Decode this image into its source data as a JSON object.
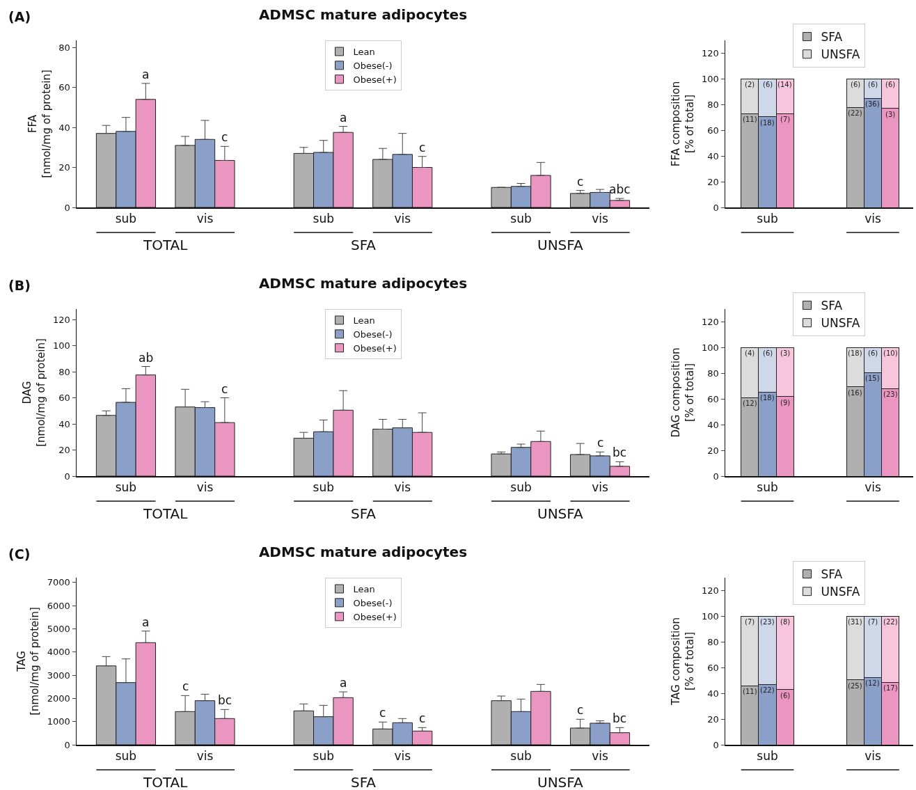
{
  "chart_data": [
    {
      "type": "bar",
      "title": "ADMSC mature adipocytes",
      "ylabel": "FFA\n[nmol/mg of protein]",
      "annotations": [
        "(A)",
        "TOTAL",
        "SFA",
        "UNSFA"
      ],
      "categories": [
        "sub",
        null,
        "vis",
        null,
        null,
        "sub",
        null,
        "vis",
        null,
        null,
        "sub",
        null,
        "vis"
      ],
      "ylim": [
        0,
        83.5
      ],
      "yticks": [
        0,
        20,
        40,
        60,
        80
      ],
      "legend": "top",
      "series": [
        {
          "name": "Lean",
          "color": "#b0b0b0",
          "values": [
            37,
            null,
            31,
            null,
            null,
            27,
            null,
            24,
            null,
            null,
            10,
            null,
            7
          ],
          "errors": [
            [
              37,
              41
            ],
            null,
            [
              31,
              35.5
            ],
            null,
            null,
            [
              27,
              30
            ],
            null,
            [
              24,
              29.5
            ],
            null,
            null,
            null,
            null,
            [
              7,
              8.5
            ]
          ],
          "value_labels": [
            null,
            null,
            null,
            null,
            null,
            null,
            null,
            null,
            null,
            null,
            null,
            null,
            "c"
          ]
        },
        {
          "name": "Obese(-)",
          "color": "#8aa0c8",
          "values": [
            38,
            null,
            34,
            null,
            null,
            27.5,
            null,
            26.5,
            null,
            null,
            10.5,
            null,
            7.5
          ],
          "errors": [
            [
              38,
              45
            ],
            null,
            [
              34,
              43.5
            ],
            null,
            null,
            [
              27.5,
              33.5
            ],
            null,
            [
              26.5,
              37
            ],
            null,
            null,
            [
              10.5,
              12
            ],
            null,
            [
              7.5,
              9
            ]
          ]
        },
        {
          "name": "Obese(+)",
          "color": "#eb96c0",
          "values": [
            54,
            null,
            23.5,
            null,
            null,
            37.5,
            null,
            20,
            null,
            null,
            16,
            null,
            3.5
          ],
          "errors": [
            [
              54,
              62
            ],
            null,
            [
              23.5,
              30.5
            ],
            null,
            null,
            [
              37.5,
              40.5
            ],
            null,
            [
              20,
              25.5
            ],
            null,
            null,
            [
              16,
              22.5
            ],
            null,
            [
              3.5,
              4.5
            ]
          ],
          "value_labels": [
            "a",
            null,
            "c",
            null,
            null,
            "a",
            null,
            "c",
            null,
            null,
            null,
            null,
            "abc"
          ]
        }
      ]
    },
    {
      "type": "bar",
      "stacked": true,
      "ylabel": "FFA composition\n[% of total]",
      "categories": [
        null,
        "sub",
        null,
        null,
        null,
        null,
        null,
        "vis",
        null
      ],
      "ylim": [
        0,
        130
      ],
      "yticks": [
        0,
        20,
        40,
        60,
        80,
        100,
        120
      ],
      "legend": "top",
      "series": [
        {
          "name": "SFA",
          "colors": [
            "#b0b0b0",
            "#8aa0c8",
            "#eb96c0",
            null,
            null,
            null,
            "#b0b0b0",
            "#8aa0c8",
            "#eb96c0"
          ],
          "values": [
            73,
            70.5,
            73,
            null,
            null,
            null,
            78,
            85,
            77
          ]
        },
        {
          "name": "UNSFA",
          "colors": [
            "#dcdcdc",
            "#cfd8e8",
            "#f7c6dc",
            null,
            null,
            null,
            "#dcdcdc",
            "#cfd8e8",
            "#f7c6dc"
          ],
          "values": [
            27,
            29.5,
            27,
            null,
            null,
            null,
            22,
            15,
            23
          ]
        }
      ],
      "annotations": [
        {
          "text": "(11)",
          "y": 73
        },
        {
          "text": "(18)",
          "y": 70.5
        },
        {
          "text": "(7)",
          "y": 73
        },
        {
          "text": "(22)",
          "y": 78
        },
        {
          "text": "(36)",
          "y": 85
        },
        {
          "text": "(3)",
          "y": 77
        },
        {
          "text": "(2)",
          "y": 100
        },
        {
          "text": "(6)",
          "y": 100
        },
        {
          "text": "(14)",
          "y": 100
        },
        {
          "text": "(6)",
          "y": 100
        },
        {
          "text": "(6)",
          "y": 100
        },
        {
          "text": "(6)",
          "y": 100
        }
      ]
    },
    {
      "type": "bar",
      "title": "ADMSC mature adipocytes",
      "ylabel": "DAG\n[nmol/mg of protein]",
      "annotations": [
        "(B)",
        "TOTAL",
        "SFA",
        "UNSFA"
      ],
      "categories": [
        "sub",
        null,
        "vis",
        null,
        null,
        "sub",
        null,
        "vis",
        null,
        null,
        "sub",
        null,
        "vis"
      ],
      "ylim": [
        0,
        128
      ],
      "yticks": [
        0,
        20,
        40,
        60,
        80,
        100,
        120
      ],
      "legend": "top",
      "series": [
        {
          "name": "Lean",
          "color": "#b0b0b0",
          "values": [
            46.5,
            null,
            53,
            null,
            null,
            29,
            null,
            36,
            null,
            null,
            17,
            null,
            16.5
          ],
          "errors": [
            [
              46.5,
              50
            ],
            null,
            [
              53,
              66.5
            ],
            null,
            null,
            [
              29,
              33.5
            ],
            null,
            [
              36,
              43.5
            ],
            null,
            null,
            [
              17,
              18.5
            ],
            null,
            [
              16.5,
              25
            ]
          ]
        },
        {
          "name": "Obese(-)",
          "color": "#8aa0c8",
          "values": [
            56.5,
            null,
            52.5,
            null,
            null,
            34,
            null,
            37,
            null,
            null,
            22,
            null,
            15.5
          ],
          "errors": [
            [
              56.5,
              67
            ],
            null,
            [
              52.5,
              57
            ],
            null,
            null,
            [
              34,
              43
            ],
            null,
            [
              37,
              43.5
            ],
            null,
            null,
            [
              22,
              24.5
            ],
            null,
            [
              15.5,
              18.5
            ]
          ],
          "value_labels": [
            null,
            null,
            null,
            null,
            null,
            null,
            null,
            null,
            null,
            null,
            null,
            null,
            "c"
          ]
        },
        {
          "name": "Obese(+)",
          "color": "#eb96c0",
          "values": [
            77.5,
            null,
            41,
            null,
            null,
            50.5,
            null,
            33.5,
            null,
            null,
            26.5,
            null,
            7.5
          ],
          "errors": [
            [
              77.5,
              84
            ],
            null,
            [
              41,
              60
            ],
            null,
            null,
            [
              50.5,
              65.5
            ],
            null,
            [
              33.5,
              48.5
            ],
            null,
            null,
            [
              26.5,
              34.5
            ],
            null,
            [
              7.5,
              11
            ]
          ],
          "value_labels": [
            "ab",
            null,
            "c",
            null,
            null,
            null,
            null,
            null,
            null,
            null,
            null,
            null,
            "bc"
          ]
        }
      ]
    },
    {
      "type": "bar",
      "stacked": true,
      "ylabel": "DAG composition\n[% of total]",
      "categories": [
        null,
        "sub",
        null,
        null,
        null,
        null,
        null,
        "vis",
        null
      ],
      "ylim": [
        0,
        130
      ],
      "yticks": [
        0,
        20,
        40,
        60,
        80,
        100,
        120
      ],
      "legend": "top",
      "series": [
        {
          "name": "SFA",
          "colors": [
            "#b0b0b0",
            "#8aa0c8",
            "#eb96c0",
            null,
            null,
            null,
            "#b0b0b0",
            "#8aa0c8",
            "#eb96c0"
          ],
          "values": [
            61,
            65.5,
            62,
            null,
            null,
            null,
            69.5,
            80.5,
            68
          ]
        },
        {
          "name": "UNSFA",
          "colors": [
            "#dcdcdc",
            "#cfd8e8",
            "#f7c6dc",
            null,
            null,
            null,
            "#dcdcdc",
            "#cfd8e8",
            "#f7c6dc"
          ],
          "values": [
            39,
            34.5,
            38,
            null,
            null,
            null,
            30.5,
            19.5,
            32
          ]
        }
      ],
      "annotations": [
        {
          "text": "(12)",
          "y": 61
        },
        {
          "text": "(18)",
          "y": 65.5
        },
        {
          "text": "(9)",
          "y": 62
        },
        {
          "text": "(16)",
          "y": 69.5
        },
        {
          "text": "(15)",
          "y": 80.5
        },
        {
          "text": "(23)",
          "y": 68
        },
        {
          "text": "(4)",
          "y": 100
        },
        {
          "text": "(6)",
          "y": 100
        },
        {
          "text": "(3)",
          "y": 100
        },
        {
          "text": "(18)",
          "y": 100
        },
        {
          "text": "(6)",
          "y": 100
        },
        {
          "text": "(10)",
          "y": 100
        }
      ]
    },
    {
      "type": "bar",
      "title": "ADMSC mature adipocytes",
      "ylabel": "TAG\n[nmol/mg of protein]",
      "annotations": [
        "(C)",
        "TOTAL",
        "SFA",
        "UNSFA"
      ],
      "categories": [
        "sub",
        null,
        "vis",
        null,
        null,
        "sub",
        null,
        "vis",
        null,
        null,
        "sub",
        null,
        "vis"
      ],
      "ylim": [
        0,
        7200
      ],
      "yticks": [
        0,
        1000,
        2000,
        3000,
        4000,
        5000,
        6000,
        7000
      ],
      "legend": "top",
      "series": [
        {
          "name": "Lean",
          "color": "#b0b0b0",
          "values": [
            3400,
            null,
            1430,
            null,
            null,
            1460,
            null,
            680,
            null,
            null,
            1900,
            null,
            720
          ],
          "errors": [
            [
              3400,
              3800
            ],
            null,
            [
              1430,
              2120
            ],
            null,
            null,
            [
              1460,
              1760
            ],
            null,
            [
              680,
              980
            ],
            null,
            null,
            [
              1900,
              2100
            ],
            null,
            [
              720,
              1100
            ]
          ],
          "value_labels": [
            null,
            null,
            "c",
            null,
            null,
            null,
            null,
            "c",
            null,
            null,
            null,
            null,
            "c"
          ]
        },
        {
          "name": "Obese(-)",
          "color": "#8aa0c8",
          "values": [
            2680,
            null,
            1900,
            null,
            null,
            1210,
            null,
            950,
            null,
            null,
            1430,
            null,
            930
          ],
          "errors": [
            [
              2680,
              3700
            ],
            null,
            [
              1900,
              2180
            ],
            null,
            null,
            [
              1210,
              1700
            ],
            null,
            [
              950,
              1130
            ],
            null,
            null,
            [
              1430,
              1970
            ],
            null,
            [
              930,
              1030
            ]
          ]
        },
        {
          "name": "Obese(+)",
          "color": "#eb96c0",
          "values": [
            4400,
            null,
            1130,
            null,
            null,
            2030,
            null,
            590,
            null,
            null,
            2300,
            null,
            520
          ],
          "errors": [
            [
              4400,
              4900
            ],
            null,
            [
              1130,
              1520
            ],
            null,
            null,
            [
              2030,
              2280
            ],
            null,
            [
              590,
              740
            ],
            null,
            null,
            [
              2300,
              2600
            ],
            null,
            [
              520,
              740
            ]
          ],
          "value_labels": [
            "a",
            null,
            "bc",
            null,
            null,
            "a",
            null,
            "c",
            null,
            null,
            null,
            null,
            "bc"
          ]
        }
      ]
    },
    {
      "type": "bar",
      "stacked": true,
      "ylabel": "TAG composition\n[% of total]",
      "categories": [
        null,
        "sub",
        null,
        null,
        null,
        null,
        null,
        "vis",
        null
      ],
      "ylim": [
        0,
        130
      ],
      "yticks": [
        0,
        20,
        40,
        60,
        80,
        100,
        120
      ],
      "legend": "top",
      "series": [
        {
          "name": "SFA",
          "colors": [
            "#b0b0b0",
            "#8aa0c8",
            "#eb96c0",
            null,
            null,
            null,
            "#b0b0b0",
            "#8aa0c8",
            "#eb96c0"
          ],
          "values": [
            46,
            47,
            43,
            null,
            null,
            null,
            50.5,
            52.5,
            48.5
          ]
        },
        {
          "name": "UNSFA",
          "colors": [
            "#dcdcdc",
            "#cfd8e8",
            "#f7c6dc",
            null,
            null,
            null,
            "#dcdcdc",
            "#cfd8e8",
            "#f7c6dc"
          ],
          "values": [
            54,
            53,
            57,
            null,
            null,
            null,
            49.5,
            47.5,
            51.5
          ]
        }
      ],
      "annotations": [
        {
          "text": "(11)",
          "y": 46
        },
        {
          "text": "(22)",
          "y": 47
        },
        {
          "text": "(6)",
          "y": 43
        },
        {
          "text": "(25)",
          "y": 50.5
        },
        {
          "text": "(12)",
          "y": 52.5
        },
        {
          "text": "(17)",
          "y": 48.5
        },
        {
          "text": "(7)",
          "y": 100
        },
        {
          "text": "(23)",
          "y": 100
        },
        {
          "text": "(8)",
          "y": 100
        },
        {
          "text": "(31)",
          "y": 100
        },
        {
          "text": "(7)",
          "y": 100
        },
        {
          "text": "(22)",
          "y": 100
        }
      ]
    }
  ]
}
